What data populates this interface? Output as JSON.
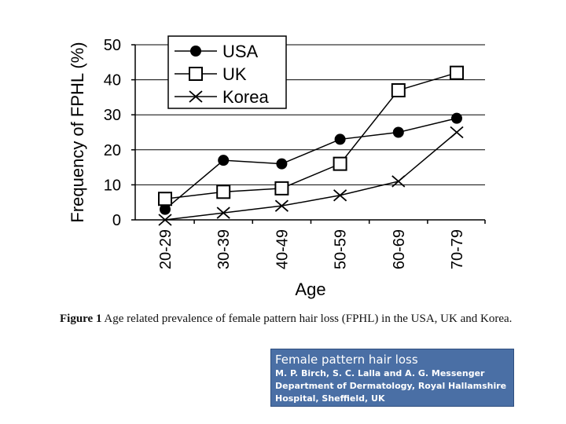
{
  "chart_data": {
    "type": "line",
    "categories": [
      "20-29",
      "30-39",
      "40-49",
      "50-59",
      "60-69",
      "70-79"
    ],
    "series": [
      {
        "name": "USA",
        "values": [
          3,
          17,
          16,
          23,
          25,
          29
        ],
        "marker": "filled-circle",
        "color": "#000000"
      },
      {
        "name": "UK",
        "values": [
          6,
          8,
          9,
          16,
          37,
          42
        ],
        "marker": "open-square",
        "color": "#000000"
      },
      {
        "name": "Korea",
        "values": [
          0,
          2,
          4,
          7,
          11,
          25
        ],
        "marker": "x",
        "color": "#000000"
      }
    ],
    "xlabel": "Age",
    "ylabel": "Frequency of FPHL (%)",
    "ylim": [
      0,
      50
    ],
    "yticks": [
      0,
      10,
      20,
      30,
      40,
      50
    ],
    "grid": "horizontal",
    "legend_position": "top-left"
  },
  "caption": {
    "label": "Figure 1",
    "text": "Age related prevalence of female pattern hair loss (FPHL) in the USA, UK and Korea."
  },
  "reference": {
    "title": "Female pattern hair loss",
    "authors": "M. P. Birch, S. C. Lalla and A. G. Messenger",
    "affiliation": "Department of Dermatology, Royal Hallamshire Hospital, Sheffield, UK",
    "background": "#4a6fa5"
  }
}
